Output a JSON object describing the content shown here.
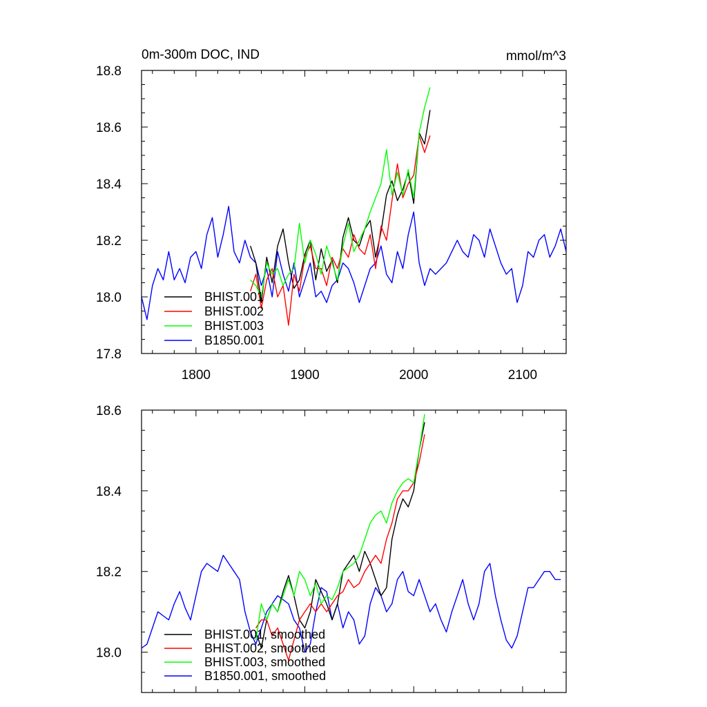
{
  "chart_data": [
    {
      "type": "line",
      "title": "0m-300m DOC, IND",
      "units": "mmol/m^3",
      "xlim": [
        1750,
        2140
      ],
      "ylim": [
        17.8,
        18.8
      ],
      "xticks": [
        {
          "value": 1800,
          "label": "1800"
        },
        {
          "value": 1900,
          "label": "1900"
        },
        {
          "value": 2000,
          "label": "2000"
        },
        {
          "value": 2100,
          "label": "2100"
        }
      ],
      "yticks": [
        {
          "value": 17.8,
          "label": "17.8"
        },
        {
          "value": 18.0,
          "label": "18.0"
        },
        {
          "value": 18.2,
          "label": "18.2"
        },
        {
          "value": 18.4,
          "label": "18.4"
        },
        {
          "value": 18.6,
          "label": "18.6"
        },
        {
          "value": 18.8,
          "label": "18.8"
        }
      ],
      "legend_placement": "bottom-left",
      "series": [
        {
          "name": "BHIST.001",
          "color": "#000000",
          "x": [
            1850,
            1855,
            1860,
            1865,
            1870,
            1875,
            1880,
            1885,
            1890,
            1895,
            1900,
            1905,
            1910,
            1915,
            1920,
            1925,
            1930,
            1935,
            1940,
            1945,
            1950,
            1955,
            1960,
            1965,
            1970,
            1975,
            1980,
            1985,
            1990,
            1995,
            2000,
            2005,
            2010,
            2015
          ],
          "y": [
            18.18,
            18.12,
            17.98,
            18.14,
            18.05,
            18.18,
            18.24,
            18.12,
            18.03,
            18.06,
            18.15,
            18.2,
            18.06,
            18.17,
            18.09,
            18.13,
            18.05,
            18.21,
            18.28,
            18.2,
            18.18,
            18.24,
            18.27,
            18.14,
            18.23,
            18.36,
            18.41,
            18.34,
            18.38,
            18.44,
            18.33,
            18.58,
            18.54,
            18.66
          ]
        },
        {
          "name": "BHIST.002",
          "color": "#ff0000",
          "x": [
            1850,
            1855,
            1860,
            1865,
            1870,
            1875,
            1880,
            1885,
            1890,
            1895,
            1900,
            1905,
            1910,
            1915,
            1920,
            1925,
            1930,
            1935,
            1940,
            1945,
            1950,
            1955,
            1960,
            1965,
            1970,
            1975,
            1980,
            1985,
            1990,
            1995,
            2000,
            2005,
            2010,
            2015
          ],
          "y": [
            18.02,
            18.08,
            17.96,
            18.06,
            18.1,
            18.0,
            18.04,
            17.9,
            18.08,
            18.02,
            18.14,
            18.18,
            18.1,
            18.1,
            18.04,
            18.14,
            18.1,
            18.17,
            18.14,
            18.22,
            18.17,
            18.15,
            18.22,
            18.1,
            18.25,
            18.2,
            18.34,
            18.47,
            18.35,
            18.4,
            18.43,
            18.57,
            18.51,
            18.57
          ]
        },
        {
          "name": "BHIST.003",
          "color": "#00ff00",
          "x": [
            1850,
            1855,
            1860,
            1865,
            1870,
            1875,
            1880,
            1885,
            1890,
            1895,
            1900,
            1905,
            1910,
            1915,
            1920,
            1925,
            1930,
            1935,
            1940,
            1945,
            1950,
            1955,
            1960,
            1965,
            1970,
            1975,
            1980,
            1985,
            1990,
            1995,
            2000,
            2005,
            2010,
            2015
          ],
          "y": [
            18.06,
            18.04,
            18.0,
            18.12,
            18.08,
            18.1,
            18.04,
            18.08,
            18.1,
            18.26,
            18.12,
            18.2,
            18.15,
            18.08,
            18.18,
            18.12,
            18.06,
            18.18,
            18.26,
            18.16,
            18.2,
            18.24,
            18.3,
            18.35,
            18.4,
            18.52,
            18.36,
            18.44,
            18.36,
            18.45,
            18.35,
            18.58,
            18.67,
            18.74
          ]
        },
        {
          "name": "B1850.001",
          "color": "#0000ff",
          "x": [
            1750,
            1755,
            1760,
            1765,
            1770,
            1775,
            1780,
            1785,
            1790,
            1795,
            1800,
            1805,
            1810,
            1815,
            1820,
            1825,
            1830,
            1835,
            1840,
            1845,
            1850,
            1855,
            1860,
            1865,
            1870,
            1875,
            1880,
            1885,
            1890,
            1895,
            1900,
            1905,
            1910,
            1915,
            1920,
            1925,
            1930,
            1935,
            1940,
            1945,
            1950,
            1955,
            1960,
            1965,
            1970,
            1975,
            1980,
            1985,
            1990,
            1995,
            2000,
            2005,
            2010,
            2015,
            2020,
            2025,
            2030,
            2035,
            2040,
            2045,
            2050,
            2055,
            2060,
            2065,
            2070,
            2075,
            2080,
            2085,
            2090,
            2095,
            2100,
            2105,
            2110,
            2115,
            2120,
            2125,
            2130,
            2135,
            2140
          ],
          "y": [
            18.0,
            17.92,
            18.04,
            18.1,
            18.06,
            18.16,
            18.06,
            18.1,
            18.05,
            18.14,
            18.16,
            18.1,
            18.22,
            18.28,
            18.14,
            18.22,
            18.32,
            18.16,
            18.12,
            18.2,
            18.14,
            18.12,
            18.04,
            18.1,
            18.0,
            18.16,
            18.08,
            18.02,
            18.12,
            18.0,
            18.06,
            18.12,
            18.0,
            18.02,
            17.98,
            18.04,
            18.06,
            18.12,
            18.1,
            18.05,
            17.98,
            18.04,
            18.1,
            18.12,
            18.18,
            18.08,
            18.05,
            18.16,
            18.1,
            18.22,
            18.3,
            18.12,
            18.04,
            18.1,
            18.08,
            18.1,
            18.12,
            18.16,
            18.2,
            18.16,
            18.14,
            18.22,
            18.2,
            18.14,
            18.24,
            18.18,
            18.12,
            18.08,
            18.1,
            17.98,
            18.04,
            18.16,
            18.14,
            18.2,
            18.22,
            18.14,
            18.18,
            18.24,
            18.16
          ]
        }
      ]
    },
    {
      "type": "line",
      "title": "",
      "xlim": [
        1750,
        2140
      ],
      "ylim": [
        17.9,
        18.6
      ],
      "yticks": [
        {
          "value": 18.0,
          "label": "18.0"
        },
        {
          "value": 18.2,
          "label": "18.2"
        },
        {
          "value": 18.4,
          "label": "18.4"
        },
        {
          "value": 18.6,
          "label": "18.6"
        }
      ],
      "legend_placement": "bottom-left",
      "series": [
        {
          "name": "BHIST.001, smoothed",
          "color": "#000000",
          "x": [
            1855,
            1860,
            1865,
            1870,
            1875,
            1880,
            1885,
            1890,
            1895,
            1900,
            1905,
            1910,
            1915,
            1920,
            1925,
            1930,
            1935,
            1940,
            1945,
            1950,
            1955,
            1960,
            1965,
            1970,
            1975,
            1980,
            1985,
            1990,
            1995,
            2000,
            2005,
            2010
          ],
          "y": [
            18.05,
            18.01,
            18.08,
            18.12,
            18.1,
            18.15,
            18.19,
            18.14,
            18.08,
            18.06,
            18.1,
            18.18,
            18.15,
            18.12,
            18.08,
            18.12,
            18.2,
            18.22,
            18.24,
            18.2,
            18.25,
            18.22,
            18.18,
            18.14,
            18.16,
            18.28,
            18.34,
            18.38,
            18.36,
            18.4,
            18.5,
            18.57
          ]
        },
        {
          "name": "BHIST.002, smoothed",
          "color": "#ff0000",
          "x": [
            1855,
            1860,
            1865,
            1870,
            1875,
            1880,
            1885,
            1890,
            1895,
            1900,
            1905,
            1910,
            1915,
            1920,
            1925,
            1930,
            1935,
            1940,
            1945,
            1950,
            1955,
            1960,
            1965,
            1970,
            1975,
            1980,
            1985,
            1990,
            1995,
            2000,
            2005,
            2010
          ],
          "y": [
            18.06,
            18.08,
            18.08,
            18.04,
            18.06,
            18.02,
            17.98,
            18.03,
            18.08,
            18.1,
            18.12,
            18.1,
            18.12,
            18.1,
            18.12,
            18.14,
            18.15,
            18.18,
            18.16,
            18.17,
            18.2,
            18.22,
            18.24,
            18.22,
            18.28,
            18.32,
            18.38,
            18.4,
            18.4,
            18.42,
            18.47,
            18.54
          ]
        },
        {
          "name": "BHIST.003, smoothed",
          "color": "#00ff00",
          "x": [
            1855,
            1860,
            1865,
            1870,
            1875,
            1880,
            1885,
            1890,
            1895,
            1900,
            1905,
            1910,
            1915,
            1920,
            1925,
            1930,
            1935,
            1940,
            1945,
            1950,
            1955,
            1960,
            1965,
            1970,
            1975,
            1980,
            1985,
            1990,
            1995,
            2000,
            2005,
            2010
          ],
          "y": [
            18.03,
            18.12,
            18.08,
            18.12,
            18.1,
            18.14,
            18.18,
            18.14,
            18.2,
            18.18,
            18.14,
            18.17,
            18.12,
            18.14,
            18.13,
            18.16,
            18.2,
            18.21,
            18.22,
            18.24,
            18.28,
            18.32,
            18.34,
            18.35,
            18.32,
            18.37,
            18.4,
            18.42,
            18.43,
            18.42,
            18.5,
            18.59
          ]
        },
        {
          "name": "B1850.001, smoothed",
          "color": "#0000ff",
          "x": [
            1750,
            1755,
            1760,
            1765,
            1770,
            1775,
            1780,
            1785,
            1790,
            1795,
            1800,
            1805,
            1810,
            1815,
            1820,
            1825,
            1830,
            1835,
            1840,
            1845,
            1850,
            1855,
            1860,
            1865,
            1870,
            1875,
            1880,
            1885,
            1890,
            1895,
            1900,
            1905,
            1910,
            1915,
            1920,
            1925,
            1930,
            1935,
            1940,
            1945,
            1950,
            1955,
            1960,
            1965,
            1970,
            1975,
            1980,
            1985,
            1990,
            1995,
            2000,
            2005,
            2010,
            2015,
            2020,
            2025,
            2030,
            2035,
            2040,
            2045,
            2050,
            2055,
            2060,
            2065,
            2070,
            2075,
            2080,
            2085,
            2090,
            2095,
            2100,
            2105,
            2110,
            2115,
            2120,
            2125,
            2130,
            2135
          ],
          "y": [
            18.01,
            18.02,
            18.06,
            18.1,
            18.09,
            18.08,
            18.12,
            18.15,
            18.11,
            18.08,
            18.14,
            18.2,
            18.22,
            18.21,
            18.2,
            18.24,
            18.22,
            18.2,
            18.18,
            18.1,
            18.05,
            18.02,
            18.06,
            18.1,
            18.12,
            18.14,
            18.13,
            18.12,
            18.08,
            18.06,
            18.0,
            18.02,
            18.1,
            18.16,
            18.15,
            18.08,
            18.12,
            18.06,
            18.1,
            18.08,
            18.02,
            18.04,
            18.12,
            18.16,
            18.14,
            18.1,
            18.12,
            18.18,
            18.2,
            18.15,
            18.14,
            18.18,
            18.14,
            18.1,
            18.12,
            18.08,
            18.05,
            18.1,
            18.14,
            18.18,
            18.12,
            18.08,
            18.12,
            18.2,
            18.22,
            18.14,
            18.08,
            18.03,
            18.01,
            18.04,
            18.1,
            18.16,
            18.16,
            18.18,
            18.2,
            18.2,
            18.18,
            18.18
          ]
        }
      ]
    }
  ]
}
